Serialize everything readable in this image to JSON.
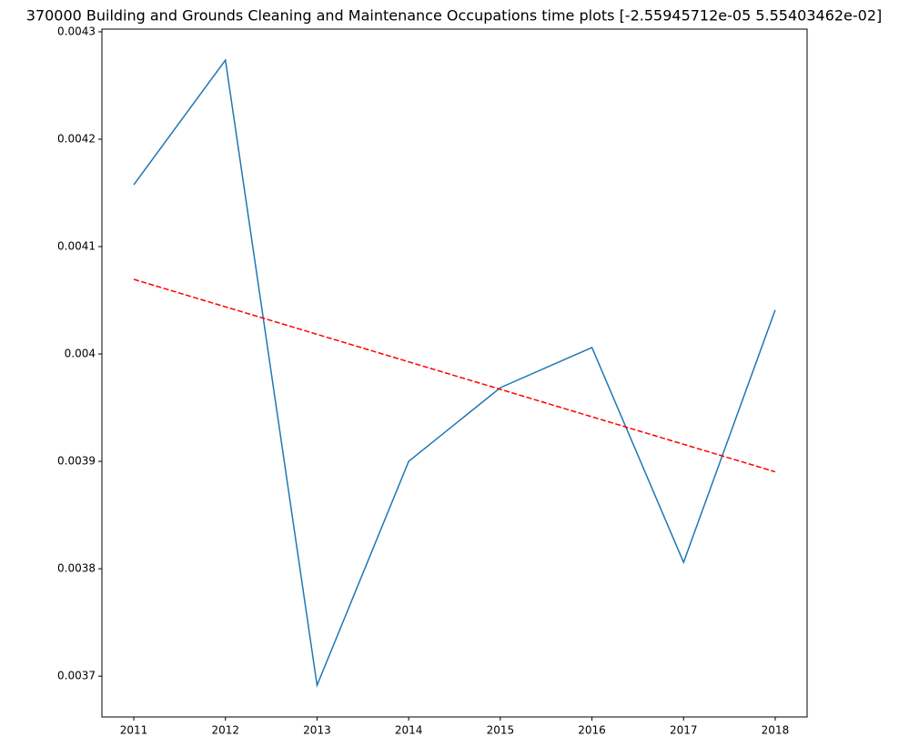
{
  "chart_data": {
    "type": "line",
    "title": "370000 Building and Grounds Cleaning and Maintenance Occupations time plots [-2.55945712e-05  5.55403462e-02]",
    "x": [
      2011,
      2012,
      2013,
      2014,
      2015,
      2016,
      2017,
      2018
    ],
    "series": [
      {
        "color": "#1f77b4",
        "linestyle": "solid",
        "values": [
          0.0041576,
          0.0042737,
          0.0036915,
          0.0039,
          0.0039686,
          0.004006,
          0.003806,
          0.004041
        ]
      },
      {
        "color": "#ff0000",
        "linestyle": "dashed",
        "values": [
          0.0040695,
          0.0040439,
          0.0040183,
          0.0039927,
          0.0039671,
          0.0039415,
          0.0039159,
          0.0038903
        ]
      }
    ],
    "xlim": [
      2010.652,
      2018.348
    ],
    "xticks": [
      2011,
      2012,
      2013,
      2014,
      2015,
      2016,
      2017,
      2018
    ],
    "ylim": [
      0.003662,
      0.0043025
    ],
    "yticks": [
      0.0037,
      0.0038,
      0.0039,
      0.004,
      0.0041,
      0.0042,
      0.0043
    ],
    "grid": false
  }
}
